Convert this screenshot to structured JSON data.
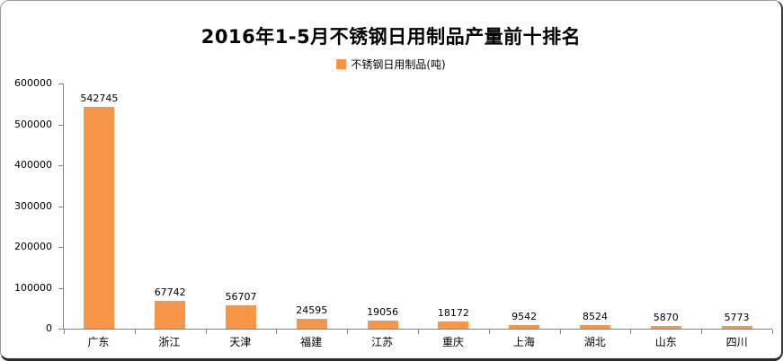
{
  "chart_data": {
    "type": "bar",
    "title": "2016年1-5月不锈钢日用制品产量前十排名",
    "legend": [
      {
        "label": "不锈钢日用制品(吨)",
        "color": "#F79646"
      }
    ],
    "legend_position": "top",
    "categories": [
      "广东",
      "浙江",
      "天津",
      "福建",
      "江苏",
      "重庆",
      "上海",
      "湖北",
      "山东",
      "四川"
    ],
    "values": [
      542745,
      67742,
      56707,
      24595,
      19056,
      18172,
      9542,
      8524,
      5870,
      5773
    ],
    "data_labels": [
      "542745",
      "67742",
      "56707",
      "24595",
      "19056",
      "18172",
      "9542",
      "8524",
      "5870",
      "5773"
    ],
    "xlabel": "",
    "ylabel": "",
    "ylim": [
      0,
      600000
    ],
    "ytick_step": 100000,
    "ytick_labels": [
      "0",
      "100000",
      "200000",
      "300000",
      "400000",
      "500000",
      "600000"
    ],
    "grid": false,
    "bar_color": "#F79646",
    "axis_color": "#868686",
    "text_color": "#000000"
  }
}
